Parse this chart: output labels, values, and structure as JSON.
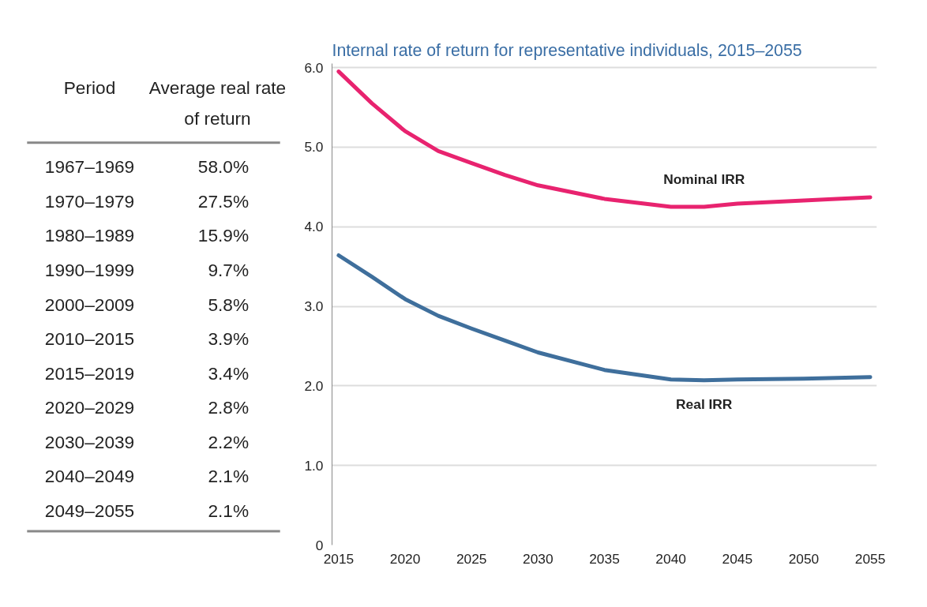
{
  "chart_data": [
    {
      "type": "other",
      "xlabel": "Period",
      "ylabel": "Average real rate of return",
      "categories": [
        "1967–1969",
        "1970–1979",
        "1980–1989",
        "1990–1999",
        "2000–2009",
        "2010–2015",
        "2015–2019",
        "2020–2029",
        "2030–2039",
        "2040–2049",
        "2049–2055"
      ],
      "values": [
        58.0,
        27.5,
        15.9,
        9.7,
        5.8,
        3.9,
        3.4,
        2.8,
        2.2,
        2.1,
        2.1
      ],
      "value_labels": [
        "58.0%",
        "27.5%",
        "15.9%",
        "9.7%",
        "5.8%",
        "3.9%",
        "3.4%",
        "2.8%",
        "2.2%",
        "2.1%",
        "2.1%"
      ]
    },
    {
      "type": "line",
      "title": "Internal rate of return for representative individuals, 2015–2055",
      "x": [
        2015,
        2017.5,
        2020,
        2022.5,
        2025,
        2027.5,
        2030,
        2035,
        2040,
        2042.5,
        2045,
        2050,
        2055
      ],
      "series": [
        {
          "name": "Nominal IRR",
          "color": "#e8236f",
          "values": [
            5.95,
            5.55,
            5.2,
            4.95,
            4.8,
            4.65,
            4.52,
            4.35,
            4.25,
            4.25,
            4.29,
            4.33,
            4.37
          ]
        },
        {
          "name": "Real IRR",
          "color": "#3f6f9c",
          "values": [
            3.64,
            3.37,
            3.09,
            2.88,
            2.72,
            2.57,
            2.42,
            2.2,
            2.08,
            2.07,
            2.08,
            2.09,
            2.11
          ]
        }
      ],
      "xlim": [
        2014.5,
        2055.5
      ],
      "ylim": [
        0,
        6.05
      ],
      "xticks": [
        2015,
        2020,
        2025,
        2030,
        2035,
        2040,
        2045,
        2050,
        2055
      ],
      "yticks": [
        0,
        {
          "value": 1,
          "label": "1.0"
        },
        {
          "value": 2,
          "label": "2.0"
        },
        {
          "value": 3,
          "label": "3.0"
        },
        {
          "value": 4,
          "label": "4.0"
        },
        {
          "value": 5,
          "label": "5.0"
        },
        {
          "value": 6,
          "label": "6.0"
        }
      ],
      "grid": "y",
      "legend": false,
      "marker": "none",
      "line_style": "solid"
    }
  ]
}
